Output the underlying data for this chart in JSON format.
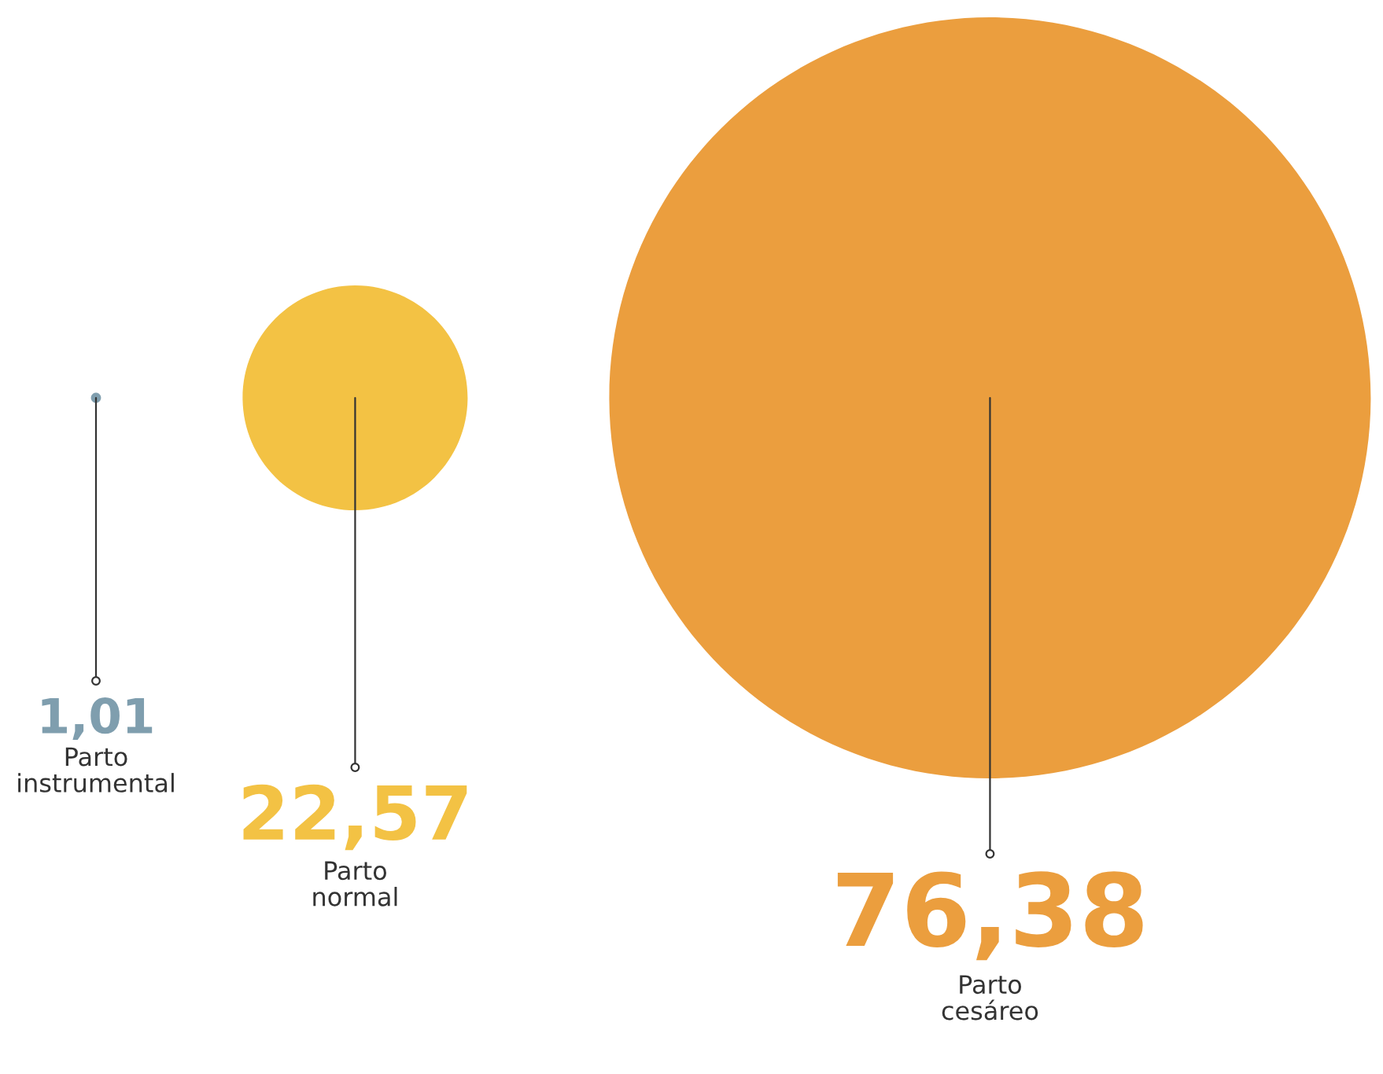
{
  "chart_data": {
    "type": "other",
    "categories": [
      "Parto\ninstrumental",
      "Parto\nnormal",
      "Parto\ncesáreo"
    ],
    "values": [
      1.01,
      22.57,
      76.38
    ],
    "value_labels": [
      "1,01",
      "22,57",
      "76,38"
    ],
    "colors": [
      "#7f9eae",
      "#f3c244",
      "#eb9e3e"
    ]
  }
}
